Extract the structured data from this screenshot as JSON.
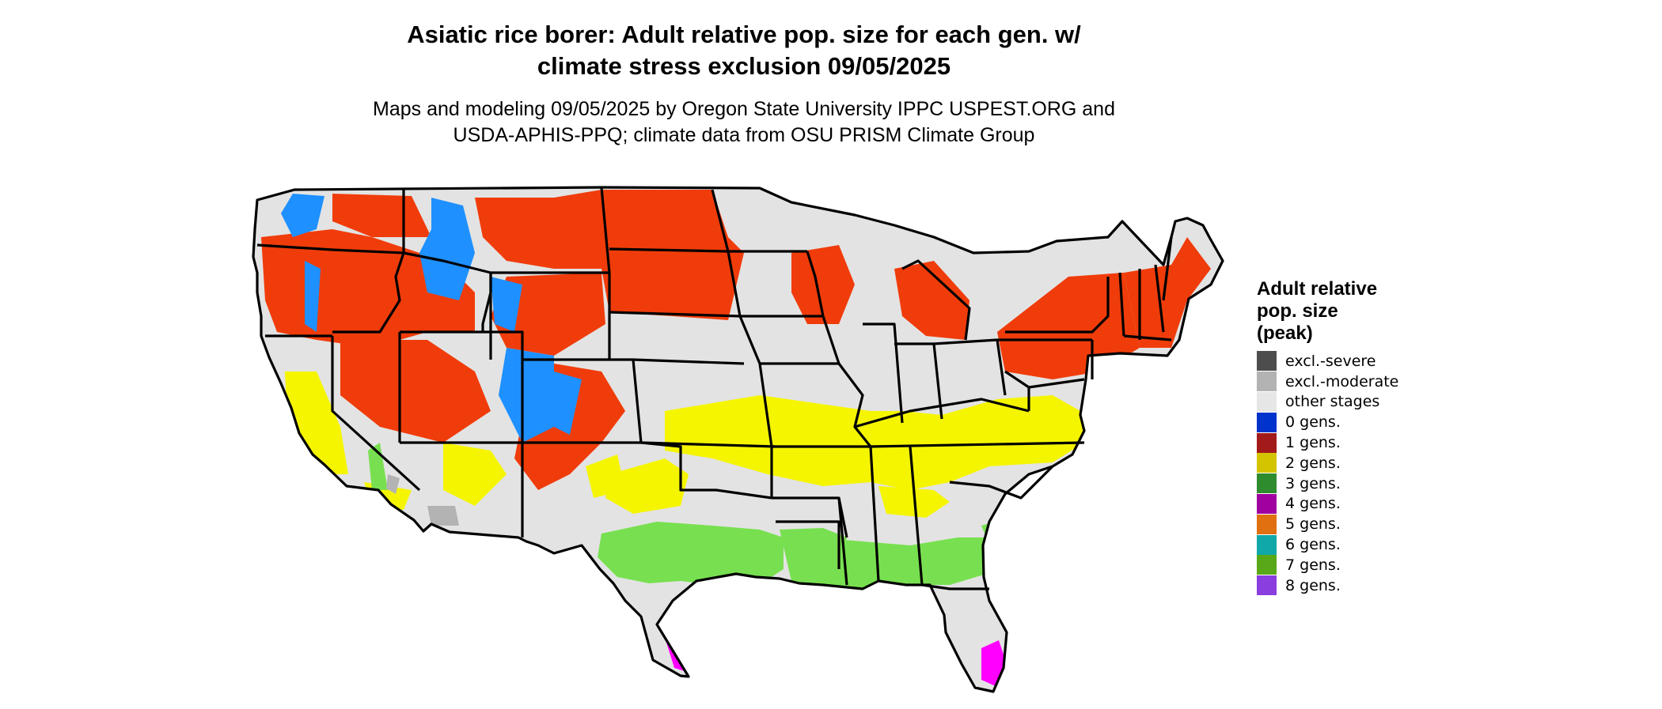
{
  "title_line1": "Asiatic rice borer: Adult relative pop. size for each gen. w/",
  "title_line2": "climate stress exclusion 09/05/2025",
  "subtitle_line1": "Maps and modeling 09/05/2025 by Oregon State University IPPC USPEST.ORG and",
  "subtitle_line2": "USDA-APHIS-PPQ; climate data from OSU PRISM Climate Group",
  "legend": {
    "title_line1": "Adult relative",
    "title_line2": "pop. size",
    "title_line3": "(peak)",
    "items": [
      {
        "label": "excl.-severe",
        "color": "#4d4d4d"
      },
      {
        "label": "excl.-moderate",
        "color": "#b3b3b3"
      },
      {
        "label": "other stages",
        "color": "#e6e6e6"
      },
      {
        "label": "0 gens.",
        "color": "#0033cc"
      },
      {
        "label": "1 gens.",
        "color": "#a31a1a"
      },
      {
        "label": "2 gens.",
        "color": "#d4c400"
      },
      {
        "label": "3 gens.",
        "color": "#2e8b2e"
      },
      {
        "label": "4 gens.",
        "color": "#a000a0"
      },
      {
        "label": "5 gens.",
        "color": "#e07010"
      },
      {
        "label": "6 gens.",
        "color": "#10a8a8"
      },
      {
        "label": "7 gens.",
        "color": "#58a818"
      },
      {
        "label": "8 gens.",
        "color": "#8a3ee0"
      }
    ]
  },
  "map_colors": {
    "background_land": "#e3e3e3",
    "one_gen": "#f03c0a",
    "two_gen": "#f5f500",
    "three_gen": "#78e050",
    "four_gen": "#ff00ff",
    "zero_gen": "#1e90ff",
    "excl_moderate": "#b3b3b3",
    "border": "#000000"
  }
}
